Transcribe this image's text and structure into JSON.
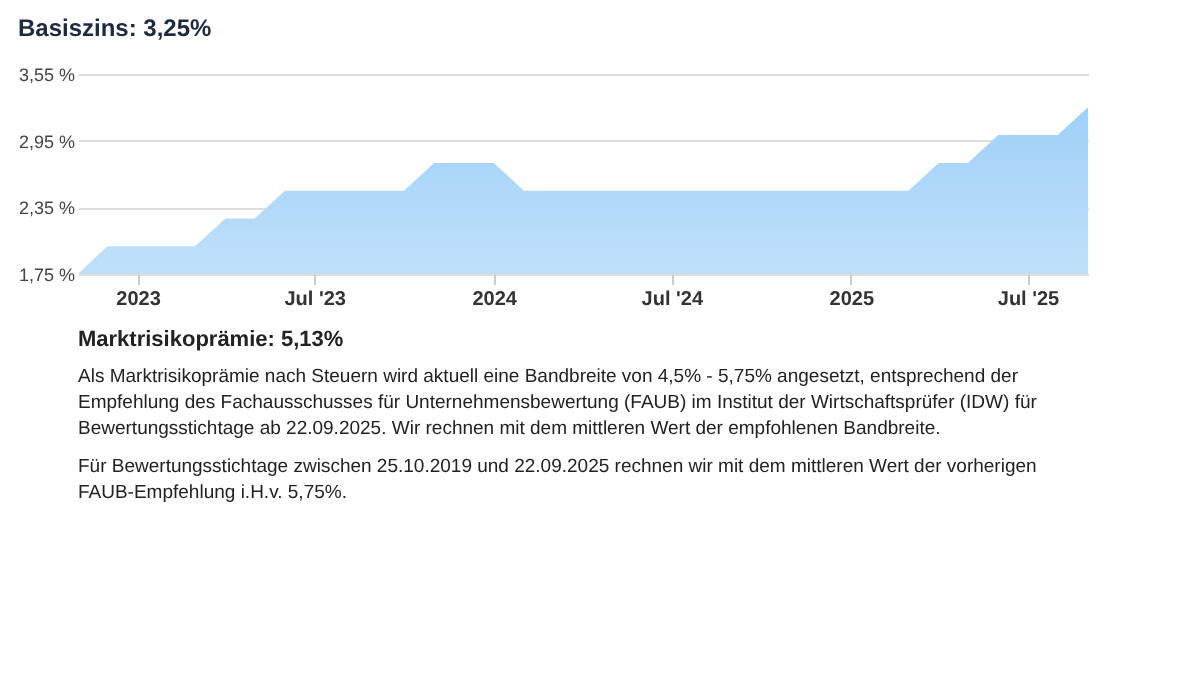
{
  "chart_data": {
    "type": "area",
    "title": "Basiszins: 3,25%",
    "x": [
      "2022-11",
      "2022-12",
      "2023-01",
      "2023-02",
      "2023-03",
      "2023-04",
      "2023-05",
      "2023-06",
      "2023-07",
      "2023-08",
      "2023-09",
      "2023-10",
      "2023-11",
      "2023-12",
      "2024-01",
      "2024-02",
      "2024-03",
      "2024-04",
      "2024-05",
      "2024-06",
      "2024-07",
      "2024-08",
      "2024-09",
      "2024-10",
      "2024-11",
      "2024-12",
      "2025-01",
      "2025-02",
      "2025-03",
      "2025-04",
      "2025-05",
      "2025-06",
      "2025-07",
      "2025-08",
      "2025-09"
    ],
    "values": [
      1.75,
      2.0,
      2.0,
      2.0,
      2.0,
      2.25,
      2.25,
      2.5,
      2.5,
      2.5,
      2.5,
      2.5,
      2.75,
      2.75,
      2.75,
      2.5,
      2.5,
      2.5,
      2.5,
      2.5,
      2.5,
      2.5,
      2.5,
      2.5,
      2.5,
      2.5,
      2.5,
      2.5,
      2.5,
      2.75,
      2.75,
      3.0,
      3.0,
      3.0,
      3.25
    ],
    "color": "#9fd0f8",
    "xlim": [
      "2022-11",
      "2025-09"
    ],
    "xticks": [
      {
        "value": "2023-01",
        "label": "2023"
      },
      {
        "value": "2023-07",
        "label": "Jul '23"
      },
      {
        "value": "2024-01",
        "label": "2024"
      },
      {
        "value": "2024-07",
        "label": "Jul '24"
      },
      {
        "value": "2025-01",
        "label": "2025"
      },
      {
        "value": "2025-07",
        "label": "Jul '25"
      }
    ],
    "ylim": [
      1.75,
      3.55
    ],
    "yticks": [
      {
        "value": 1.75,
        "label": "1,75 %"
      },
      {
        "value": 2.35,
        "label": "2,35 %"
      },
      {
        "value": 2.95,
        "label": "2,95 %"
      },
      {
        "value": 3.55,
        "label": "3,55 %"
      }
    ],
    "grid": "y",
    "annotations": [
      "Marktrisikoprämie: 5,13%",
      "Als Marktrisikoprämie nach Steuern wird aktuell eine Bandbreite von 4,5% - 5,75% angesetzt, entsprechend der Empfehlung des Fachausschusses für Unternehmensbewertung (FAUB) im Institut der Wirtschaftsprüfer (IDW) für Bewertungsstichtage ab 22.09.2025. Wir rechnen mit dem mittleren Wert der empfohlenen Bandbreite.",
      "Für Bewertungsstichtage zwischen 25.10.2019 und 22.09.2025 rechnen wir mit dem mittleren Wert der vorherigen FAUB-Empfehlung i.H.v. 5,75%."
    ]
  }
}
